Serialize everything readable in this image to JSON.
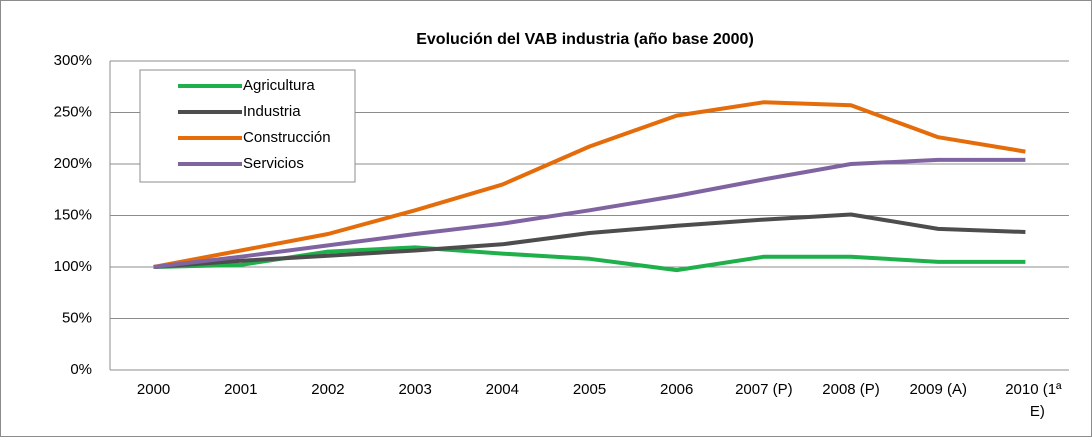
{
  "chart_data": {
    "type": "line",
    "title": "Evolución del VAB industria  (año base 2000)",
    "categories": [
      "2000",
      "2001",
      "2002",
      "2003",
      "2004",
      "2005",
      "2006",
      "2007 (P)",
      "2008 (P)",
      "2009 (A)",
      "2010 (1ª E)"
    ],
    "series": [
      {
        "name": "Agricultura",
        "color": "#1fb04b",
        "values": [
          100,
          102,
          115,
          119,
          113,
          108,
          97,
          110,
          110,
          105,
          105
        ]
      },
      {
        "name": "Industria",
        "color": "#4d4d4d",
        "values": [
          100,
          106,
          111,
          116,
          122,
          133,
          140,
          146,
          151,
          137,
          134
        ]
      },
      {
        "name": "Construcción",
        "color": "#e46c0a",
        "values": [
          100,
          116,
          132,
          155,
          180,
          217,
          247,
          260,
          257,
          226,
          212
        ]
      },
      {
        "name": "Servicios",
        "color": "#8064a2",
        "values": [
          100,
          110,
          121,
          132,
          142,
          155,
          169,
          185,
          200,
          204,
          204
        ]
      }
    ],
    "ylim": [
      0,
      300
    ],
    "yticks": [
      {
        "value": 0,
        "label": "0%"
      },
      {
        "value": 50,
        "label": "50%"
      },
      {
        "value": 100,
        "label": "100%"
      },
      {
        "value": 150,
        "label": "150%"
      },
      {
        "value": 200,
        "label": "200%"
      },
      {
        "value": 250,
        "label": "250%"
      },
      {
        "value": 300,
        "label": "300%"
      }
    ],
    "grid": true,
    "legend": "upper left"
  }
}
